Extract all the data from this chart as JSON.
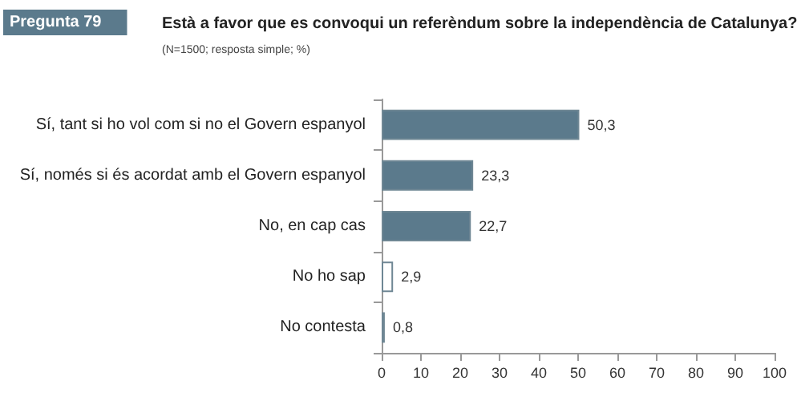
{
  "chart_data": {
    "type": "bar",
    "orientation": "horizontal",
    "title": "Està a favor que es convoqui un referèndum sobre la independència de Catalunya?",
    "subtitle": "(N=1500; resposta simple; %)",
    "annotations": [
      "Pregunta 79"
    ],
    "categories": [
      "Sí, tant si ho vol com si no el Govern espanyol",
      "Sí, només si és acordat amb el Govern espanyol",
      "No, en cap cas",
      "No ho sap",
      "No contesta"
    ],
    "values": [
      50.3,
      23.3,
      22.7,
      2.9,
      0.8
    ],
    "value_labels": [
      "50,3",
      "23,3",
      "22,7",
      "2,9",
      "0,8"
    ],
    "colors": [
      "#5b7a8c",
      "#5b7a8c",
      "#5b7a8c",
      "#ffffff",
      "#ffffff"
    ],
    "xlim": [
      0,
      100
    ],
    "xticks": [
      0,
      10,
      20,
      30,
      40,
      50,
      60,
      70,
      80,
      90,
      100
    ],
    "grid": false
  }
}
